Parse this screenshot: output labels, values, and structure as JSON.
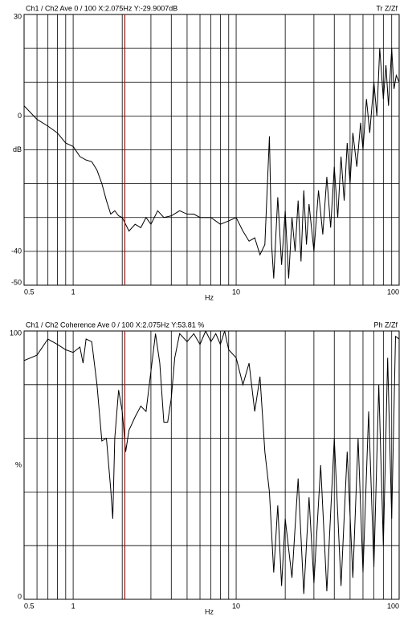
{
  "chart_data": [
    {
      "type": "line",
      "title": "Ch1 / Ch2  Ave 0 / 100  X:2.075Hz  Y:-29.9007dB",
      "title_right": "Tr Z/Zf",
      "xlabel": "Hz",
      "ylabel": "dB",
      "log_x": true,
      "xlim": [
        0.5,
        100
      ],
      "xticks": [
        0.5,
        1,
        10,
        100
      ],
      "xgrid": [
        0.5,
        0.6,
        0.7,
        0.8,
        0.9,
        1,
        2,
        3,
        4,
        5,
        6,
        7,
        8,
        9,
        10,
        20,
        30,
        40,
        50,
        60,
        70,
        80,
        90,
        100
      ],
      "ylim": [
        -50,
        30
      ],
      "yticks": [
        30,
        0,
        -40,
        -50
      ],
      "ygrid": [
        30,
        20,
        10,
        0,
        -10,
        -20,
        -30,
        -40,
        -50
      ],
      "cursor": {
        "x": 2.075,
        "color": "#c00000"
      },
      "series": [
        {
          "color": "#000000",
          "x": [
            0.5,
            0.6,
            0.7,
            0.8,
            0.9,
            1,
            1.1,
            1.2,
            1.3,
            1.4,
            1.5,
            1.6,
            1.7,
            1.8,
            1.9,
            2.0,
            2.2,
            2.4,
            2.6,
            2.8,
            3.0,
            3.3,
            3.6,
            4,
            4.5,
            5,
            5.5,
            6,
            7,
            8,
            9,
            10,
            11,
            12,
            13,
            14,
            15,
            16,
            16.5,
            17,
            18,
            19,
            20,
            21,
            22,
            23,
            24,
            25,
            26,
            27,
            28,
            30,
            32,
            34,
            36,
            38,
            40,
            42,
            44,
            46,
            48,
            50,
            52,
            55,
            58,
            60,
            63,
            66,
            70,
            73,
            76,
            80,
            83,
            86,
            90,
            93,
            96,
            100
          ],
          "values": [
            3,
            -1,
            -3,
            -5,
            -8,
            -9,
            -12,
            -13,
            -13.5,
            -16,
            -20,
            -25,
            -29,
            -28,
            -29.5,
            -30,
            -34,
            -32,
            -33,
            -30,
            -32,
            -28,
            -30,
            -29.5,
            -28,
            -29,
            -29,
            -30,
            -30,
            -32,
            -31,
            -30,
            -34,
            -37,
            -36,
            -41,
            -38,
            -6,
            -38,
            -48,
            -24,
            -44,
            -28,
            -48,
            -30,
            -40,
            -25,
            -43,
            -22,
            -38,
            -26,
            -40,
            -22,
            -35,
            -18,
            -33,
            -15,
            -30,
            -12,
            -25,
            -8,
            -20,
            -5,
            -15,
            -2,
            -10,
            5,
            -5,
            10,
            0,
            20,
            5,
            15,
            3,
            20,
            8,
            12,
            10
          ]
        }
      ]
    },
    {
      "type": "line",
      "title": "Ch1 / Ch2  Coherence Ave 0 / 100  X:2.075Hz  Y:53.81 %",
      "title_right": "Ph Z/Zf",
      "xlabel": "Hz",
      "ylabel": "%",
      "log_x": true,
      "xlim": [
        0.5,
        100
      ],
      "xticks": [
        0.5,
        1,
        10,
        100
      ],
      "xgrid": [
        0.5,
        0.6,
        0.7,
        0.8,
        0.9,
        1,
        2,
        3,
        4,
        5,
        6,
        7,
        8,
        9,
        10,
        20,
        30,
        40,
        50,
        60,
        70,
        80,
        90,
        100
      ],
      "ylim": [
        0,
        100
      ],
      "yticks": [
        100,
        0
      ],
      "ygrid": [
        100,
        80,
        60,
        40,
        20,
        0
      ],
      "cursor": {
        "x": 2.075,
        "color": "#c00000"
      },
      "series": [
        {
          "color": "#000000",
          "x": [
            0.5,
            0.6,
            0.7,
            0.8,
            0.9,
            1.0,
            1.1,
            1.15,
            1.2,
            1.3,
            1.4,
            1.5,
            1.6,
            1.7,
            1.75,
            1.8,
            1.9,
            2.0,
            2.1,
            2.2,
            2.4,
            2.6,
            2.8,
            3.0,
            3.2,
            3.4,
            3.6,
            3.8,
            4.0,
            4.2,
            4.5,
            5,
            5.5,
            6,
            6.5,
            7,
            7.5,
            8,
            8.5,
            9,
            10,
            11,
            12,
            13,
            14,
            15,
            16,
            17,
            18,
            19,
            20,
            22,
            24,
            26,
            28,
            30,
            33,
            36,
            40,
            44,
            48,
            52,
            56,
            60,
            65,
            70,
            75,
            80,
            85,
            90,
            95,
            100
          ],
          "values": [
            89,
            91,
            97,
            95,
            93,
            92,
            94,
            88,
            97,
            96,
            80,
            59,
            60,
            41,
            30,
            60,
            78,
            70,
            55,
            63,
            68,
            72,
            70,
            85,
            99,
            88,
            66,
            66,
            75,
            90,
            99,
            96,
            99,
            95,
            100,
            96,
            99,
            95,
            100,
            93,
            90,
            80,
            88,
            70,
            83,
            55,
            40,
            10,
            35,
            5,
            30,
            8,
            45,
            2,
            38,
            6,
            50,
            3,
            60,
            5,
            55,
            8,
            60,
            10,
            70,
            12,
            80,
            20,
            90,
            30,
            98,
            97
          ]
        }
      ]
    }
  ]
}
